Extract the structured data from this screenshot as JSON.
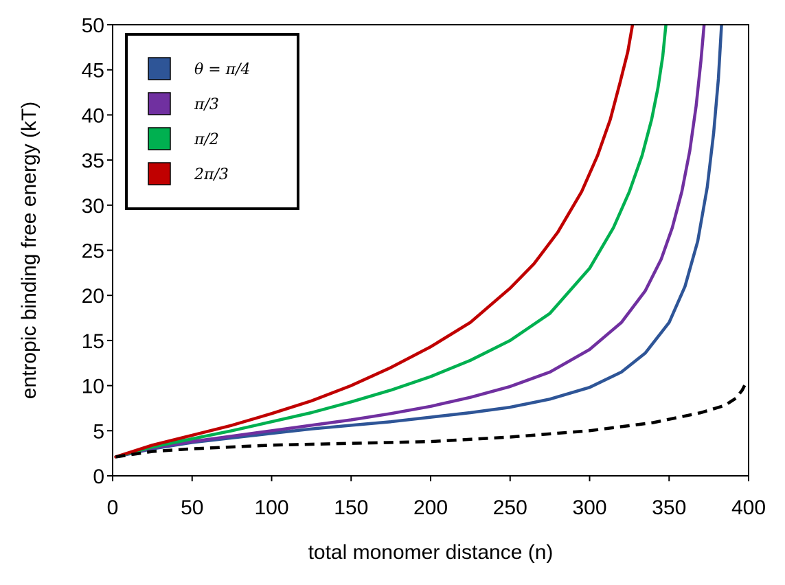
{
  "chart_data": {
    "type": "line",
    "title": "",
    "xlabel": "total monomer distance (n)",
    "ylabel": "entropic binding free energy (kT)",
    "xlim": [
      0,
      400
    ],
    "ylim": [
      0,
      50
    ],
    "xticks": [
      0,
      50,
      100,
      150,
      200,
      250,
      300,
      350,
      400
    ],
    "yticks": [
      0,
      5,
      10,
      15,
      20,
      25,
      30,
      35,
      40,
      45,
      50
    ],
    "grid": false,
    "legend_position": "top-left",
    "series": [
      {
        "name": "θ = π/4",
        "color": "#2e5597",
        "dashed": false,
        "x": [
          2,
          25,
          50,
          75,
          100,
          125,
          150,
          175,
          200,
          225,
          250,
          275,
          300,
          320,
          335,
          350,
          360,
          368,
          374,
          378,
          381,
          383
        ],
        "y": [
          2.1,
          3.0,
          3.7,
          4.2,
          4.7,
          5.2,
          5.6,
          6.0,
          6.5,
          7.0,
          7.6,
          8.5,
          9.8,
          11.5,
          13.6,
          17.0,
          21.0,
          26.0,
          32.0,
          38.0,
          44.0,
          50.0
        ]
      },
      {
        "name": "π/3",
        "color": "#7030a0",
        "dashed": false,
        "x": [
          2,
          25,
          50,
          75,
          100,
          125,
          150,
          175,
          200,
          225,
          250,
          275,
          300,
          320,
          335,
          345,
          352,
          358,
          363,
          367,
          370,
          372
        ],
        "y": [
          2.1,
          3.1,
          3.8,
          4.4,
          5.0,
          5.6,
          6.2,
          6.9,
          7.7,
          8.7,
          9.9,
          11.5,
          14.0,
          17.0,
          20.5,
          24.0,
          27.5,
          31.5,
          36.0,
          41.0,
          46.0,
          50.0
        ]
      },
      {
        "name": "π/2",
        "color": "#00b050",
        "dashed": false,
        "x": [
          2,
          25,
          50,
          75,
          100,
          125,
          150,
          175,
          200,
          225,
          250,
          275,
          300,
          315,
          325,
          333,
          339,
          343,
          346,
          348
        ],
        "y": [
          2.1,
          3.2,
          4.1,
          5.0,
          6.0,
          7.0,
          8.2,
          9.5,
          11.0,
          12.8,
          15.0,
          18.0,
          23.0,
          27.5,
          31.5,
          35.5,
          39.5,
          43.0,
          46.5,
          50.0
        ]
      },
      {
        "name": "2π/3",
        "color": "#c00000",
        "dashed": false,
        "x": [
          2,
          25,
          50,
          75,
          100,
          125,
          150,
          175,
          200,
          225,
          250,
          265,
          280,
          295,
          305,
          313,
          319,
          324,
          327
        ],
        "y": [
          2.1,
          3.4,
          4.5,
          5.6,
          6.9,
          8.3,
          10.0,
          12.0,
          14.3,
          17.0,
          20.8,
          23.5,
          27.0,
          31.5,
          35.5,
          39.5,
          43.5,
          47.0,
          50.0
        ]
      },
      {
        "name": "",
        "color": "#000000",
        "dashed": true,
        "x": [
          2,
          25,
          50,
          100,
          150,
          200,
          250,
          300,
          340,
          370,
          385,
          392,
          396,
          398
        ],
        "y": [
          2.1,
          2.7,
          3.0,
          3.4,
          3.6,
          3.8,
          4.3,
          5.0,
          5.9,
          7.0,
          7.8,
          8.6,
          9.5,
          10.2
        ]
      }
    ]
  }
}
